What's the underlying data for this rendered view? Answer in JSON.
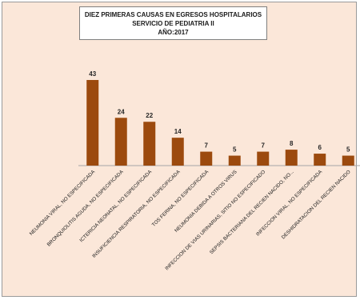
{
  "chart_data": {
    "type": "bar",
    "title": [
      "DIEZ PRIMERAS CAUSAS EN EGRESOS HOSPITALARIOS",
      "SERVICIO DE PEDIATRIA II",
      "AÑO:2017"
    ],
    "categories": [
      "NEUMONIA VIRAL, NO ESPECIFICADA",
      "BRONQUIOLITIS AGUDA, NO ESPECIFICADA",
      "ICTERICIA NEONATAL, NO ESPECIFICADA",
      "INSUFICIENCIA RESPIRATORIA, NO ESPECIFICADA",
      "TOS FERINA, NO ESPECIFICADA",
      "NEUMONIA DEBIDA A OTROS VIRUS",
      "INFECCION DE VIAS URINARIAS, SITIO NO ESPECIFICADO",
      "SEPSIS BACTERIANA DEL RECIEN NACIDO, NO...",
      "INFECCION VIRAL, NO ESPECIFICADA",
      "DESHIDRATACION DEL RECIEN NACIDO"
    ],
    "values": [
      43,
      24,
      22,
      14,
      7,
      5,
      7,
      8,
      6,
      5
    ],
    "ylim": [
      0,
      45
    ],
    "grid": false,
    "legend": "none",
    "bar_color": "#9c4a0e",
    "axis_color": "#a6a6a6"
  },
  "colors": {
    "background": "#fbe7d9",
    "title_box": "#ffffff"
  }
}
